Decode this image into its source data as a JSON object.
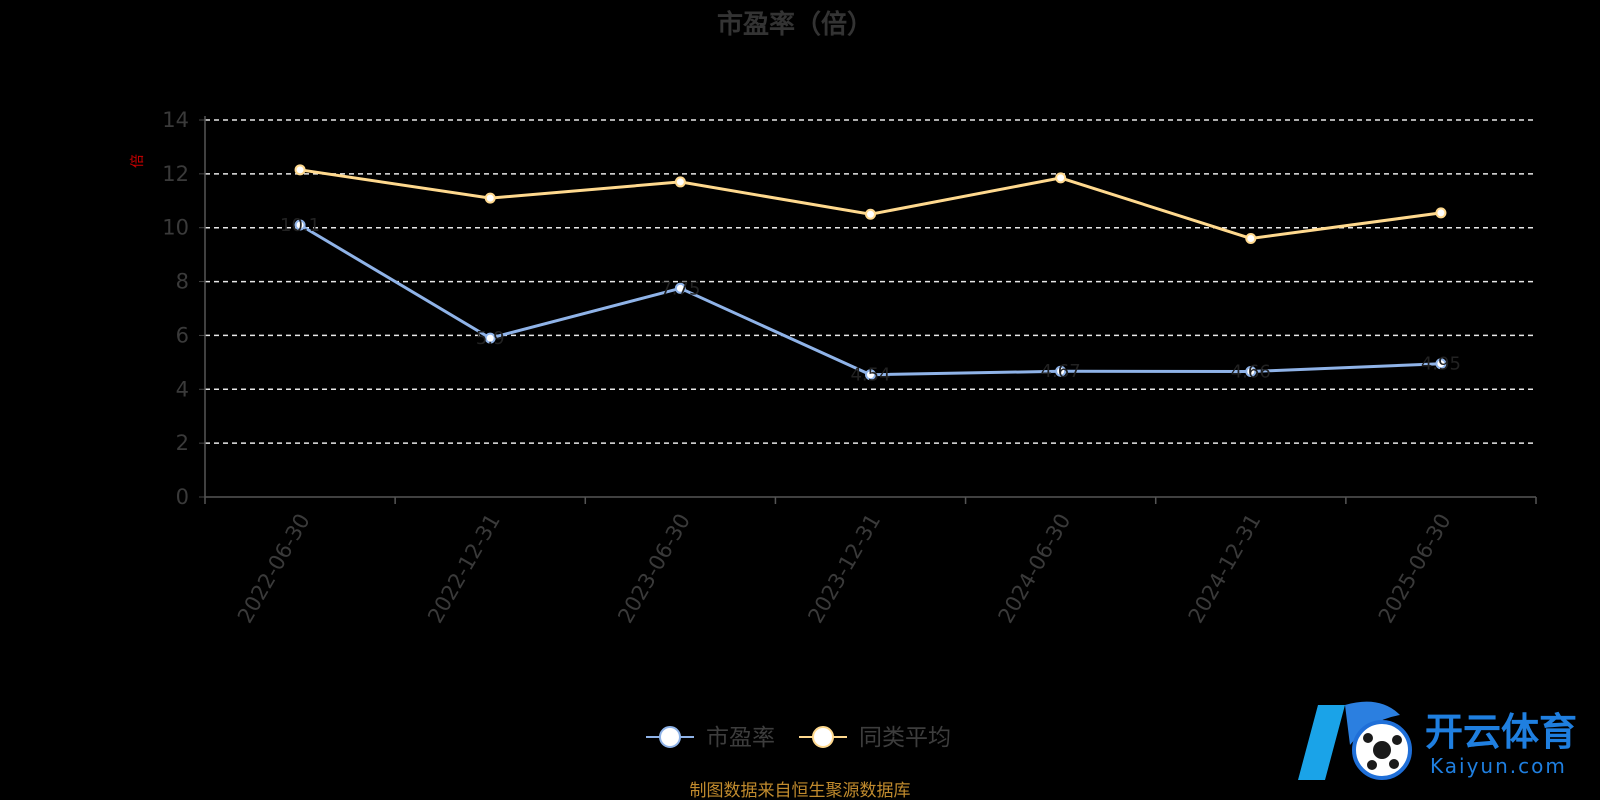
{
  "chart_data": {
    "type": "line",
    "title": "市盈率（倍）",
    "ylabel": "倍",
    "ylim": [
      0,
      14
    ],
    "yticks": [
      0,
      2,
      4,
      6,
      8,
      10,
      12,
      14
    ],
    "grid": true,
    "legend_position": "bottom-center",
    "categories": [
      "2022-06-30",
      "2022-12-31",
      "2023-06-30",
      "2023-12-31",
      "2024-06-30",
      "2024-12-31",
      "2025-06-30"
    ],
    "series": [
      {
        "name": "市盈率",
        "color": "#8fb3e8",
        "values": [
          10.1,
          5.9,
          7.75,
          4.54,
          4.67,
          4.66,
          4.95
        ],
        "labels": [
          "10.1",
          "5.9",
          "7.75",
          "4.54",
          "4.67",
          "4.66",
          "4.95"
        ]
      },
      {
        "name": "同类平均",
        "color": "#ffd98e",
        "values": [
          12.15,
          11.1,
          11.7,
          10.5,
          11.85,
          9.6,
          10.55
        ]
      }
    ]
  },
  "source_note": "制图数据来自恒生聚源数据库",
  "watermark": {
    "cn": "开云体育",
    "en": "Kaiyun.com"
  }
}
